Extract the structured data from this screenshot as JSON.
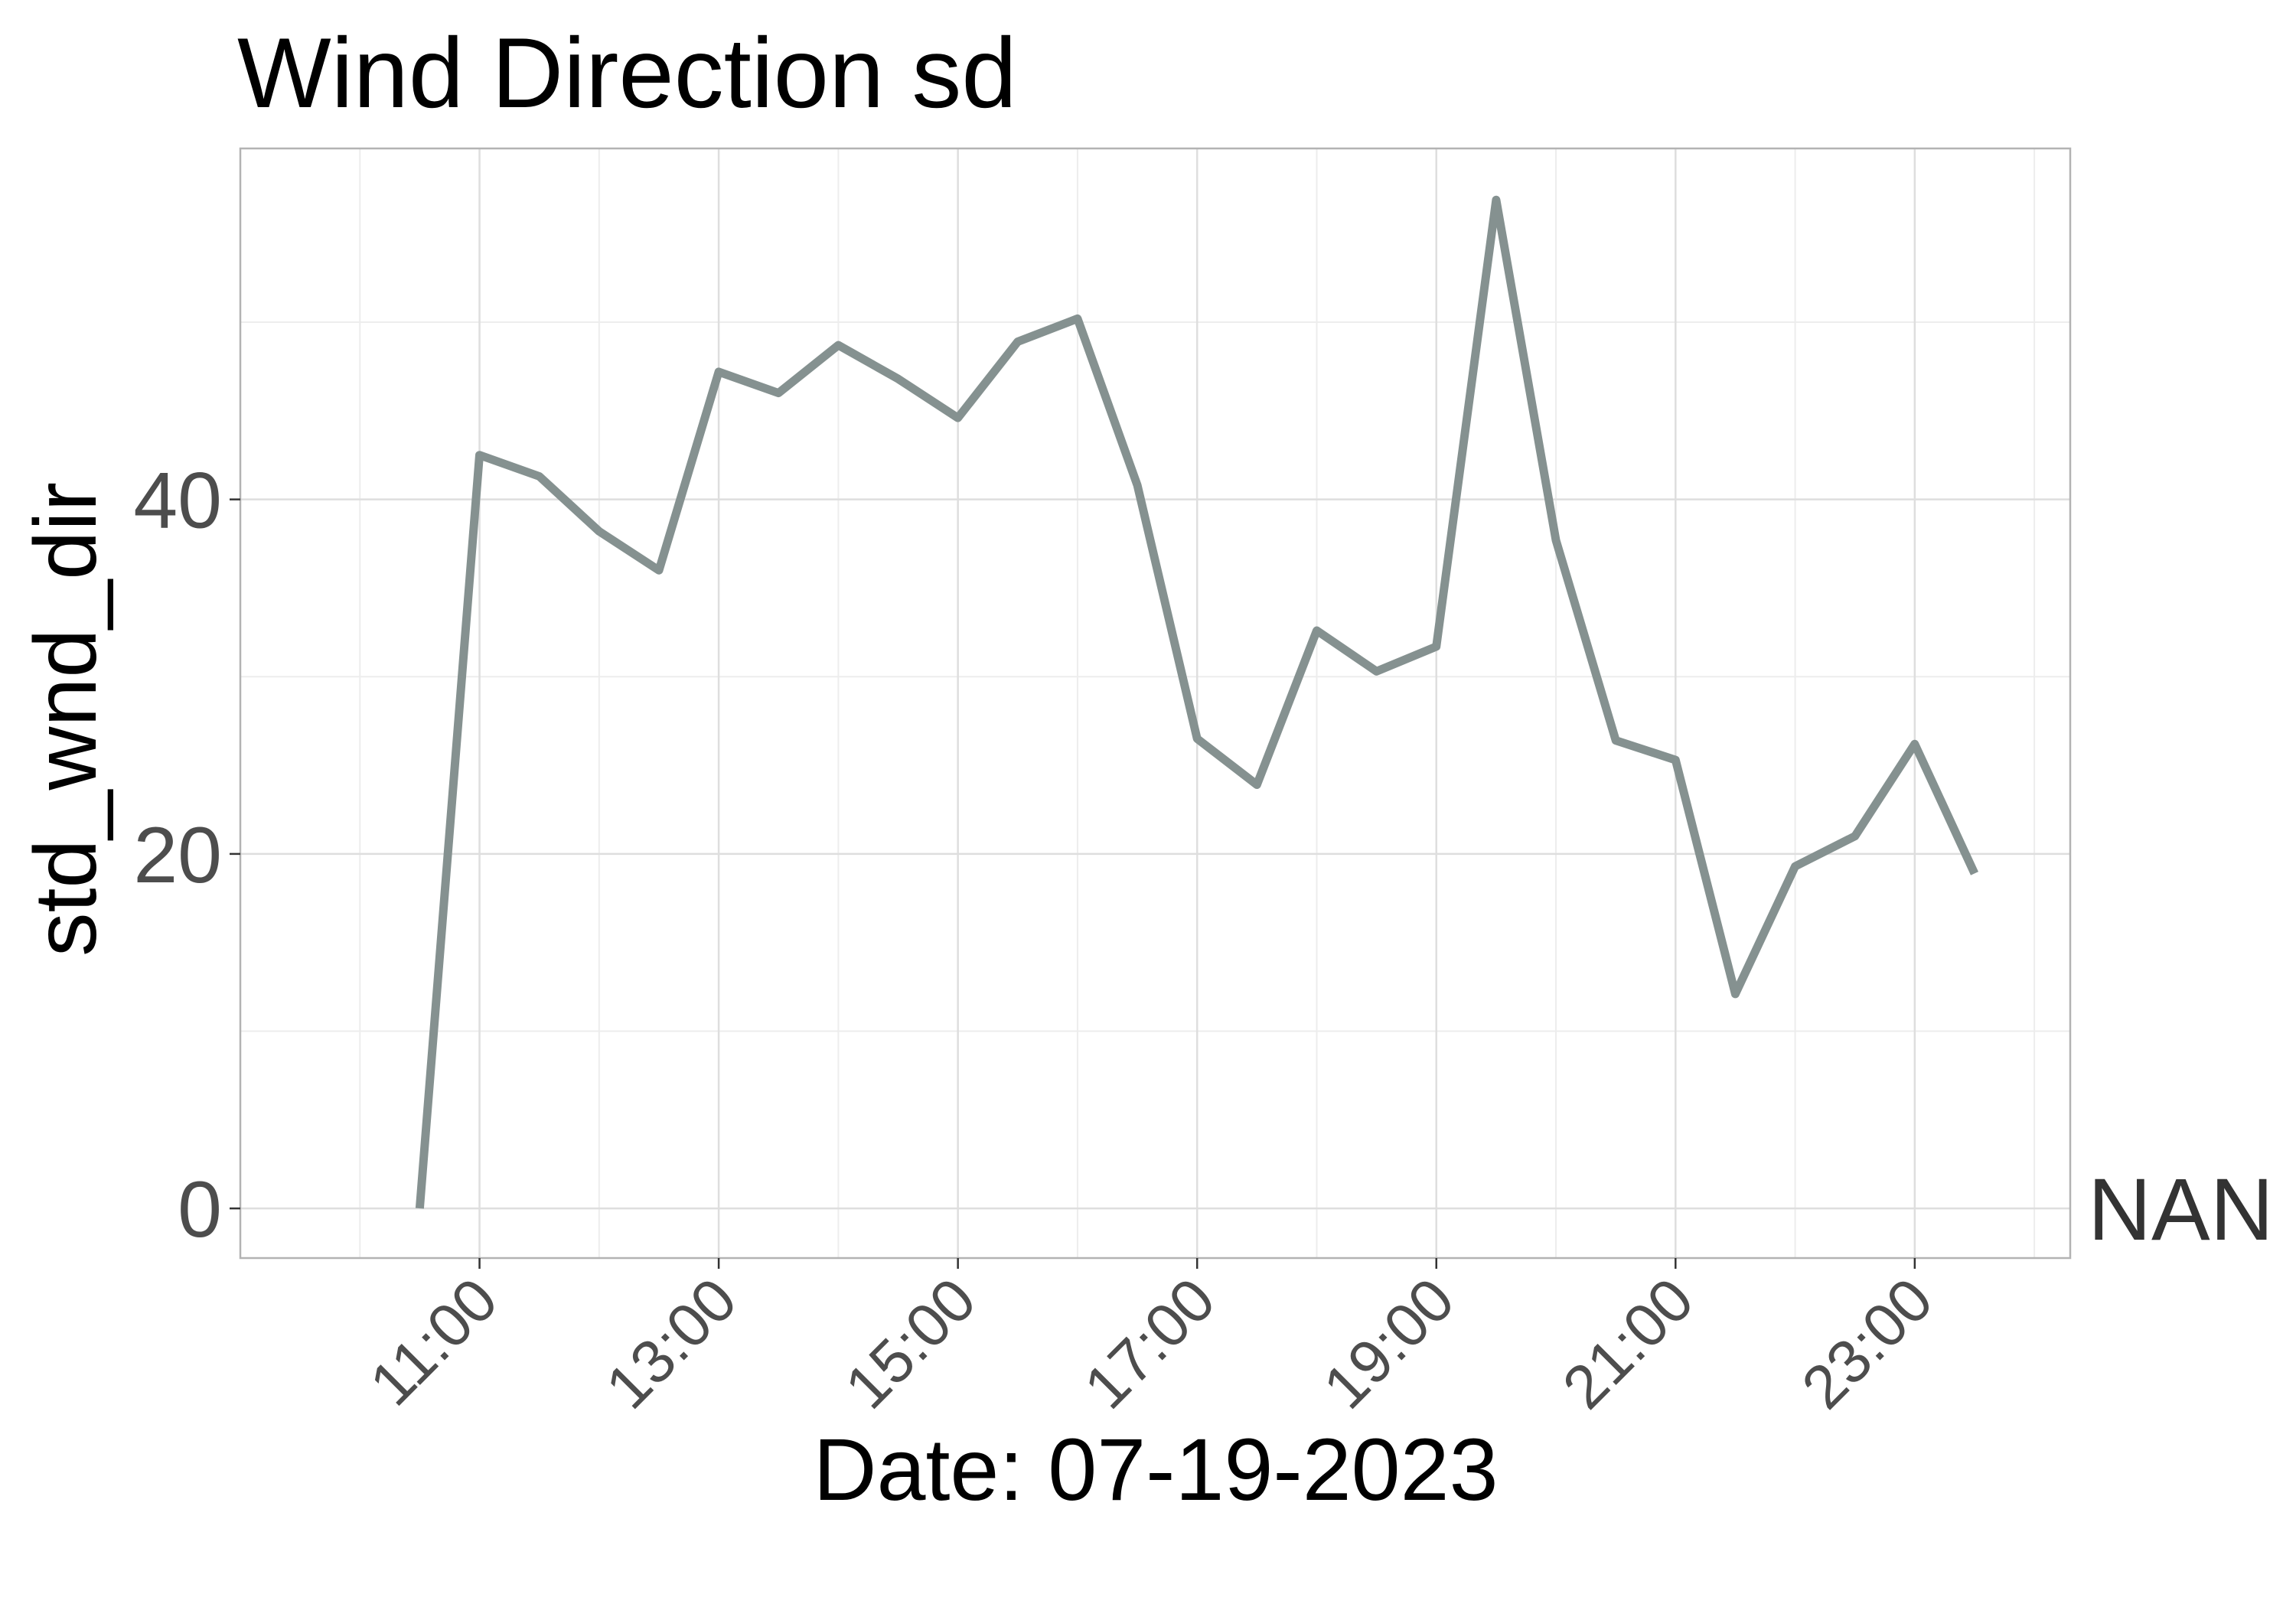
{
  "chart_data": {
    "type": "line",
    "title": "Wind Direction sd",
    "xlabel": "Date: 07-19-2023",
    "ylabel": "std_wnd_dir",
    "x_tick_labels": [
      "11:00",
      "13:00",
      "15:00",
      "17:00",
      "19:00",
      "21:00",
      "23:00"
    ],
    "x_ticks": [
      11,
      13,
      15,
      17,
      19,
      21,
      23
    ],
    "y_tick_labels": [
      "0",
      "20",
      "40"
    ],
    "y_ticks": [
      0,
      20,
      40
    ],
    "xlim": [
      9.0,
      24.3
    ],
    "ylim": [
      -2.8,
      59.8
    ],
    "grid": true,
    "line_color": "#859190",
    "side_label": "NAN",
    "series": [
      {
        "name": "std_wnd_dir",
        "x": [
          10.5,
          11.0,
          11.5,
          12.0,
          12.5,
          13.0,
          13.5,
          14.0,
          14.5,
          15.0,
          15.5,
          16.0,
          16.5,
          17.0,
          17.5,
          18.0,
          18.5,
          19.0,
          19.5,
          20.0,
          20.5,
          21.0,
          21.5,
          22.0,
          22.5,
          23.0,
          23.5
        ],
        "values": [
          0,
          42.5,
          41.3,
          38.2,
          36.0,
          47.2,
          46.0,
          48.7,
          46.8,
          44.6,
          48.9,
          50.2,
          40.8,
          26.5,
          23.9,
          32.6,
          30.3,
          31.7,
          56.9,
          37.7,
          26.4,
          25.3,
          12.1,
          19.3,
          21.0,
          26.2,
          18.9
        ]
      }
    ]
  }
}
